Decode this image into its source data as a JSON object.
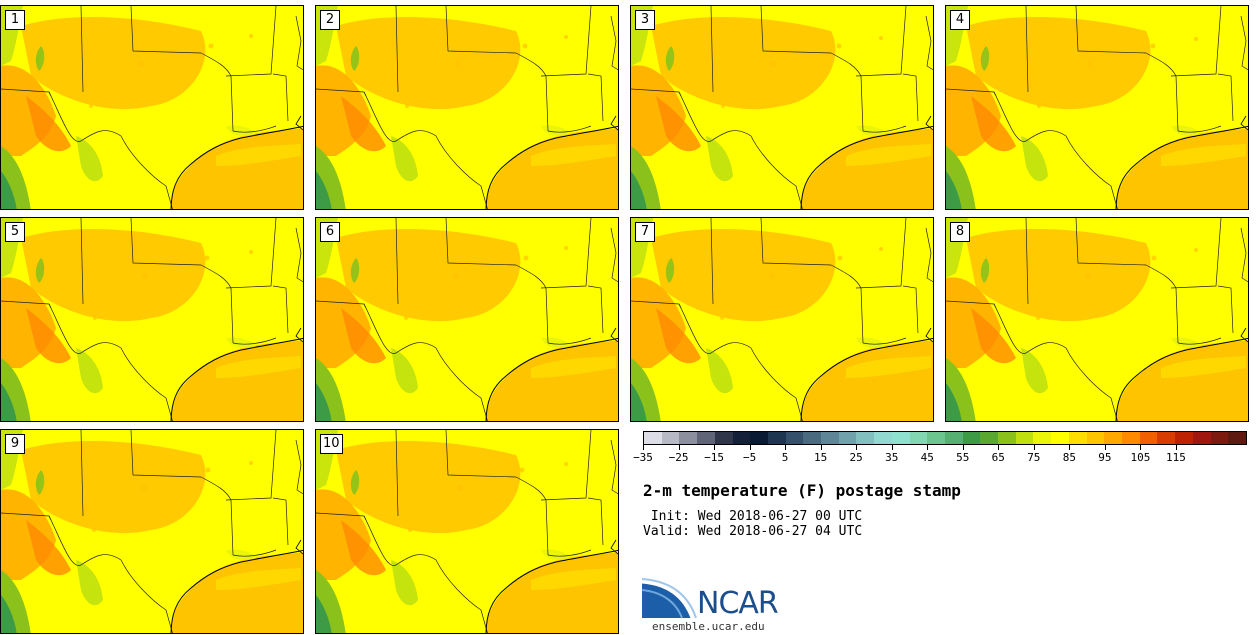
{
  "members": [
    "1",
    "2",
    "3",
    "4",
    "5",
    "6",
    "7",
    "8",
    "9",
    "10"
  ],
  "colorbar": {
    "colors": [
      "#dcdde6",
      "#b7b9c5",
      "#8c8f9e",
      "#5f6476",
      "#2f364a",
      "#142038",
      "#0b1a33",
      "#1e3650",
      "#34506a",
      "#4a6a80",
      "#5e8696",
      "#71a2ab",
      "#82bfbf",
      "#90d8d0",
      "#8fe1cf",
      "#82d6b1",
      "#6cc58e",
      "#55b071",
      "#3d9a45",
      "#5aa82f",
      "#8ac21b",
      "#bfe00e",
      "#eaf50a",
      "#ffff00",
      "#ffdd00",
      "#ffc400",
      "#ffa800",
      "#ff8a00",
      "#f06000",
      "#d73d00",
      "#bd2300",
      "#a01710",
      "#7d1a10",
      "#5c1a10"
    ],
    "ticks": [
      "−35",
      "−25",
      "−15",
      "−5",
      "5",
      "15",
      "25",
      "35",
      "45",
      "55",
      "65",
      "75",
      "85",
      "95",
      "105",
      "115"
    ]
  },
  "title": "2-m temperature (F) postage stamp",
  "init": " Init: Wed 2018-06-27 00 UTC",
  "valid": "Valid: Wed 2018-06-27 04 UTC",
  "logo_text": "NCAR",
  "site": "ensemble.ucar.edu"
}
